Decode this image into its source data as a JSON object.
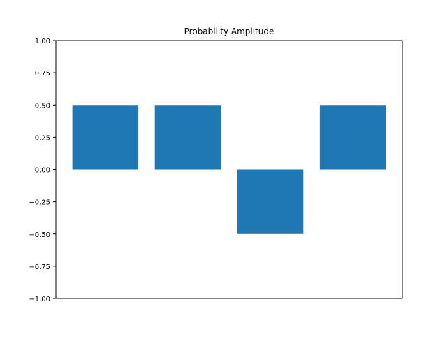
{
  "chart_data": {
    "type": "bar",
    "title": "Probability Amplitude",
    "xlabel": "",
    "ylabel": "",
    "categories": [
      "",
      "",
      "",
      ""
    ],
    "values": [
      0.5,
      0.5,
      -0.5,
      0.5
    ],
    "ylim": [
      -1.0,
      1.0
    ],
    "yticks": [
      -1.0,
      -0.75,
      -0.5,
      -0.25,
      0.0,
      0.25,
      0.5,
      0.75,
      1.0
    ],
    "ytick_labels": [
      "−1.00",
      "−0.75",
      "−0.50",
      "−0.25",
      "0.00",
      "0.25",
      "0.50",
      "0.75",
      "1.00"
    ],
    "show_xticks": false,
    "grid": false,
    "bar_color": "#1f77b4"
  }
}
